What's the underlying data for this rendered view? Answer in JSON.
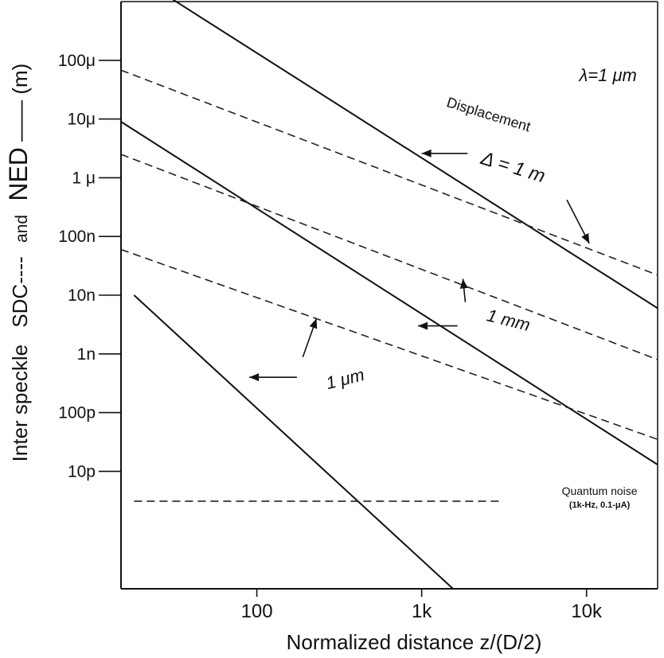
{
  "chart_data": {
    "type": "line",
    "xscale": "log",
    "yscale": "log",
    "xlim": [
      15,
      27000
    ],
    "ylim": [
      1e-13,
      0.001
    ],
    "x_ticks": [
      100,
      1000,
      10000
    ],
    "x_tick_labels": [
      "100",
      "1k",
      "10k"
    ],
    "y_ticks": [
      1e-11,
      1e-10,
      1e-09,
      1e-08,
      1e-07,
      1e-06,
      1e-05,
      0.0001
    ],
    "y_tick_labels": [
      "10p",
      "100p",
      "1n",
      "10n",
      "100n",
      "1 μ",
      "10μ",
      "100μ"
    ],
    "xlabel": "Normalized distance z/(D/2)",
    "ylabel_parts": [
      "Inter speckle",
      "SDC----",
      "and",
      "NED",
      "—— (m)"
    ],
    "corner_label": "λ=1 μm",
    "grid": false,
    "series": [
      {
        "name": "NED Δ = 1 m",
        "style": "solid",
        "x": [
          22,
          27000
        ],
        "y": [
          0.002,
          6e-09
        ]
      },
      {
        "name": "SDC Δ = 1 m",
        "style": "dashed",
        "x": [
          15,
          27000
        ],
        "y": [
          6.8e-05,
          2.2e-08
        ]
      },
      {
        "name": "NED Δ = 1 mm",
        "style": "solid",
        "x": [
          15,
          27000
        ],
        "y": [
          9e-06,
          1.3e-11
        ]
      },
      {
        "name": "SDC Δ = 1 mm",
        "style": "dashed",
        "x": [
          15,
          27000
        ],
        "y": [
          2.5e-06,
          8e-10
        ]
      },
      {
        "name": "SDC Δ = 1 μm",
        "style": "dashed",
        "x": [
          15,
          27000
        ],
        "y": [
          6e-08,
          3.5e-11
        ]
      },
      {
        "name": "NED Δ = 1 μm",
        "style": "solid",
        "x": [
          18,
          1550
        ],
        "y": [
          1e-08,
          1e-13
        ]
      },
      {
        "name": "Quantum noise",
        "style": "dashed",
        "x": [
          18,
          3000
        ],
        "y": [
          3.1e-12,
          3.1e-12
        ]
      }
    ],
    "annotations": [
      {
        "text": "Displacement",
        "x": 2500,
        "y": 1e-05
      },
      {
        "text": "Δ = 1 m",
        "x": 3500,
        "y": 1.2e-06
      },
      {
        "text": "1 mm",
        "x": 3300,
        "y": 3e-09
      },
      {
        "text": "1 μm",
        "x": 350,
        "y": 3e-10
      },
      {
        "text": "Quantum noise",
        "x": 12000,
        "y": 4e-12
      },
      {
        "text": "(1k-Hz, 0.1-μA)",
        "x": 12000,
        "y": 2.4e-12
      }
    ]
  }
}
